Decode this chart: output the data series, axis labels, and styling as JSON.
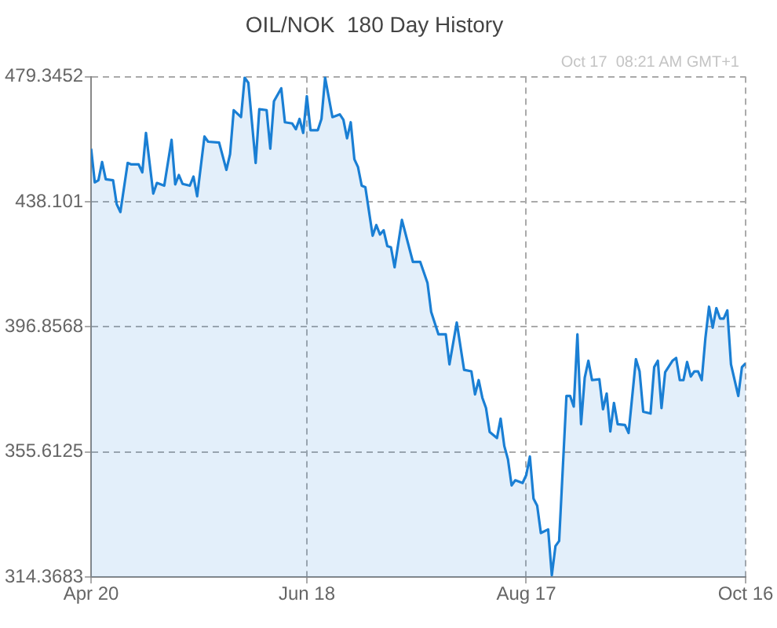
{
  "chart_data": {
    "type": "area",
    "title": "OIL/NOK  180 Day History",
    "annotations": [
      "Oct 17  08:21 AM GMT+1"
    ],
    "x": [
      "--04-20",
      "--04-21",
      "--04-22",
      "--04-23",
      "--04-24",
      "--04-26",
      "--04-27",
      "--04-28",
      "--04-30",
      "--05-01",
      "--05-03",
      "--05-04",
      "--05-05",
      "--05-07",
      "--05-08",
      "--05-10",
      "--05-12",
      "--05-13",
      "--05-14",
      "--05-15",
      "--05-17",
      "--05-18",
      "--05-19",
      "--05-21",
      "--05-22",
      "--05-25",
      "--05-27",
      "--05-28",
      "--05-29",
      "--05-31",
      "--06-01",
      "--06-02",
      "--06-04",
      "--06-05",
      "--06-07",
      "--06-08",
      "--06-09",
      "--06-11",
      "--06-12",
      "--06-14",
      "--06-15",
      "--06-16",
      "--06-17",
      "--06-18",
      "--06-19",
      "--06-21",
      "--06-22",
      "--06-23",
      "--06-25",
      "--06-27",
      "--06-28",
      "--06-29",
      "--06-30",
      "--07-01",
      "--07-02",
      "--07-03",
      "--07-04",
      "--07-06",
      "--07-07",
      "--07-08",
      "--07-09",
      "--07-10",
      "--07-11",
      "--07-12",
      "--07-14",
      "--07-17",
      "--07-19",
      "--07-21",
      "--07-22",
      "--07-24",
      "--07-26",
      "--07-27",
      "--07-29",
      "--07-31",
      "--08-02",
      "--08-03",
      "--08-04",
      "--08-05",
      "--08-06",
      "--08-07",
      "--08-09",
      "--08-10",
      "--08-11",
      "--08-12",
      "--08-13",
      "--08-14",
      "--08-16",
      "--08-17",
      "--08-18",
      "--08-19",
      "--08-20",
      "--08-21",
      "--08-23",
      "--08-24",
      "--08-25",
      "--08-26",
      "--08-28",
      "--08-29",
      "--08-30",
      "--08-31",
      "--09-01",
      "--09-02",
      "--09-03",
      "--09-04",
      "--09-06",
      "--09-07",
      "--09-08",
      "--09-09",
      "--09-10",
      "--09-11",
      "--09-13",
      "--09-14",
      "--09-16",
      "--09-17",
      "--09-18",
      "--09-20",
      "--09-21",
      "--09-22",
      "--09-23",
      "--09-24",
      "--09-26",
      "--09-27",
      "--09-28",
      "--09-29",
      "--09-30",
      "--10-01",
      "--10-02",
      "--10-03",
      "--10-04",
      "--10-05",
      "--10-06",
      "--10-07",
      "--10-08",
      "--10-09",
      "--10-10",
      "--10-11",
      "--10-12",
      "--10-14",
      "--10-15",
      "--10-16"
    ],
    "series": [
      {
        "color": "#1a7fd4",
        "values": [
          455.6,
          444.5,
          445.2,
          451.2,
          445.5,
          445.2,
          437.3,
          434.7,
          450.9,
          450.4,
          450.4,
          447.8,
          460.8,
          440.8,
          444.3,
          443.4,
          458.5,
          443.8,
          446.9,
          444.0,
          443.4,
          446.4,
          439.9,
          459.6,
          457.9,
          457.6,
          448.6,
          453.8,
          468.3,
          466.0,
          479.0,
          477.3,
          450.9,
          468.6,
          468.3,
          455.6,
          471.2,
          475.5,
          464.3,
          463.9,
          462.0,
          465.4,
          460.8,
          472.9,
          461.7,
          461.7,
          465.4,
          479.0,
          466.0,
          466.9,
          465.1,
          459.0,
          464.3,
          452.1,
          449.5,
          443.4,
          442.9,
          426.9,
          430.4,
          427.3,
          428.7,
          423.5,
          423.1,
          416.5,
          432.1,
          418.3,
          418.3,
          411.3,
          401.8,
          394.4,
          394.4,
          384.5,
          398.3,
          382.7,
          382.2,
          374.6,
          379.3,
          373.5,
          370.1,
          362.2,
          360.2,
          366.6,
          357.6,
          353.2,
          344.6,
          346.3,
          345.4,
          348.0,
          354.1,
          340.2,
          337.9,
          328.9,
          330.1,
          315.0,
          324.6,
          326.3,
          374.1,
          374.1,
          370.6,
          394.4,
          364.8,
          380.1,
          385.7,
          379.3,
          379.6,
          369.7,
          374.9,
          362.4,
          371.8,
          364.8,
          364.5,
          361.9,
          386.2,
          382.2,
          368.9,
          368.3,
          383.6,
          385.7,
          370.1,
          381.9,
          385.7,
          386.6,
          379.3,
          379.3,
          385.3,
          380.5,
          382.2,
          382.2,
          379.3,
          393.1,
          403.5,
          396.6,
          403.0,
          399.6,
          399.6,
          402.3,
          384.5,
          374.1,
          383.6,
          384.8
        ]
      }
    ],
    "xlim": [
      "--04-20",
      "--10-16"
    ],
    "xticks": [
      {
        "value": "--04-20",
        "label": "Apr 20"
      },
      {
        "value": "--06-18",
        "label": "Jun 18"
      },
      {
        "value": "--08-17",
        "label": "Aug 17"
      },
      {
        "value": "--10-16",
        "label": "Oct 16"
      }
    ],
    "ylim": [
      314.3683,
      479.3452
    ],
    "yticks": [
      314.3683,
      355.6125,
      396.8568,
      438.101,
      479.3452
    ],
    "grid": true,
    "legend": false,
    "marker": "none",
    "line_style": "solid"
  }
}
